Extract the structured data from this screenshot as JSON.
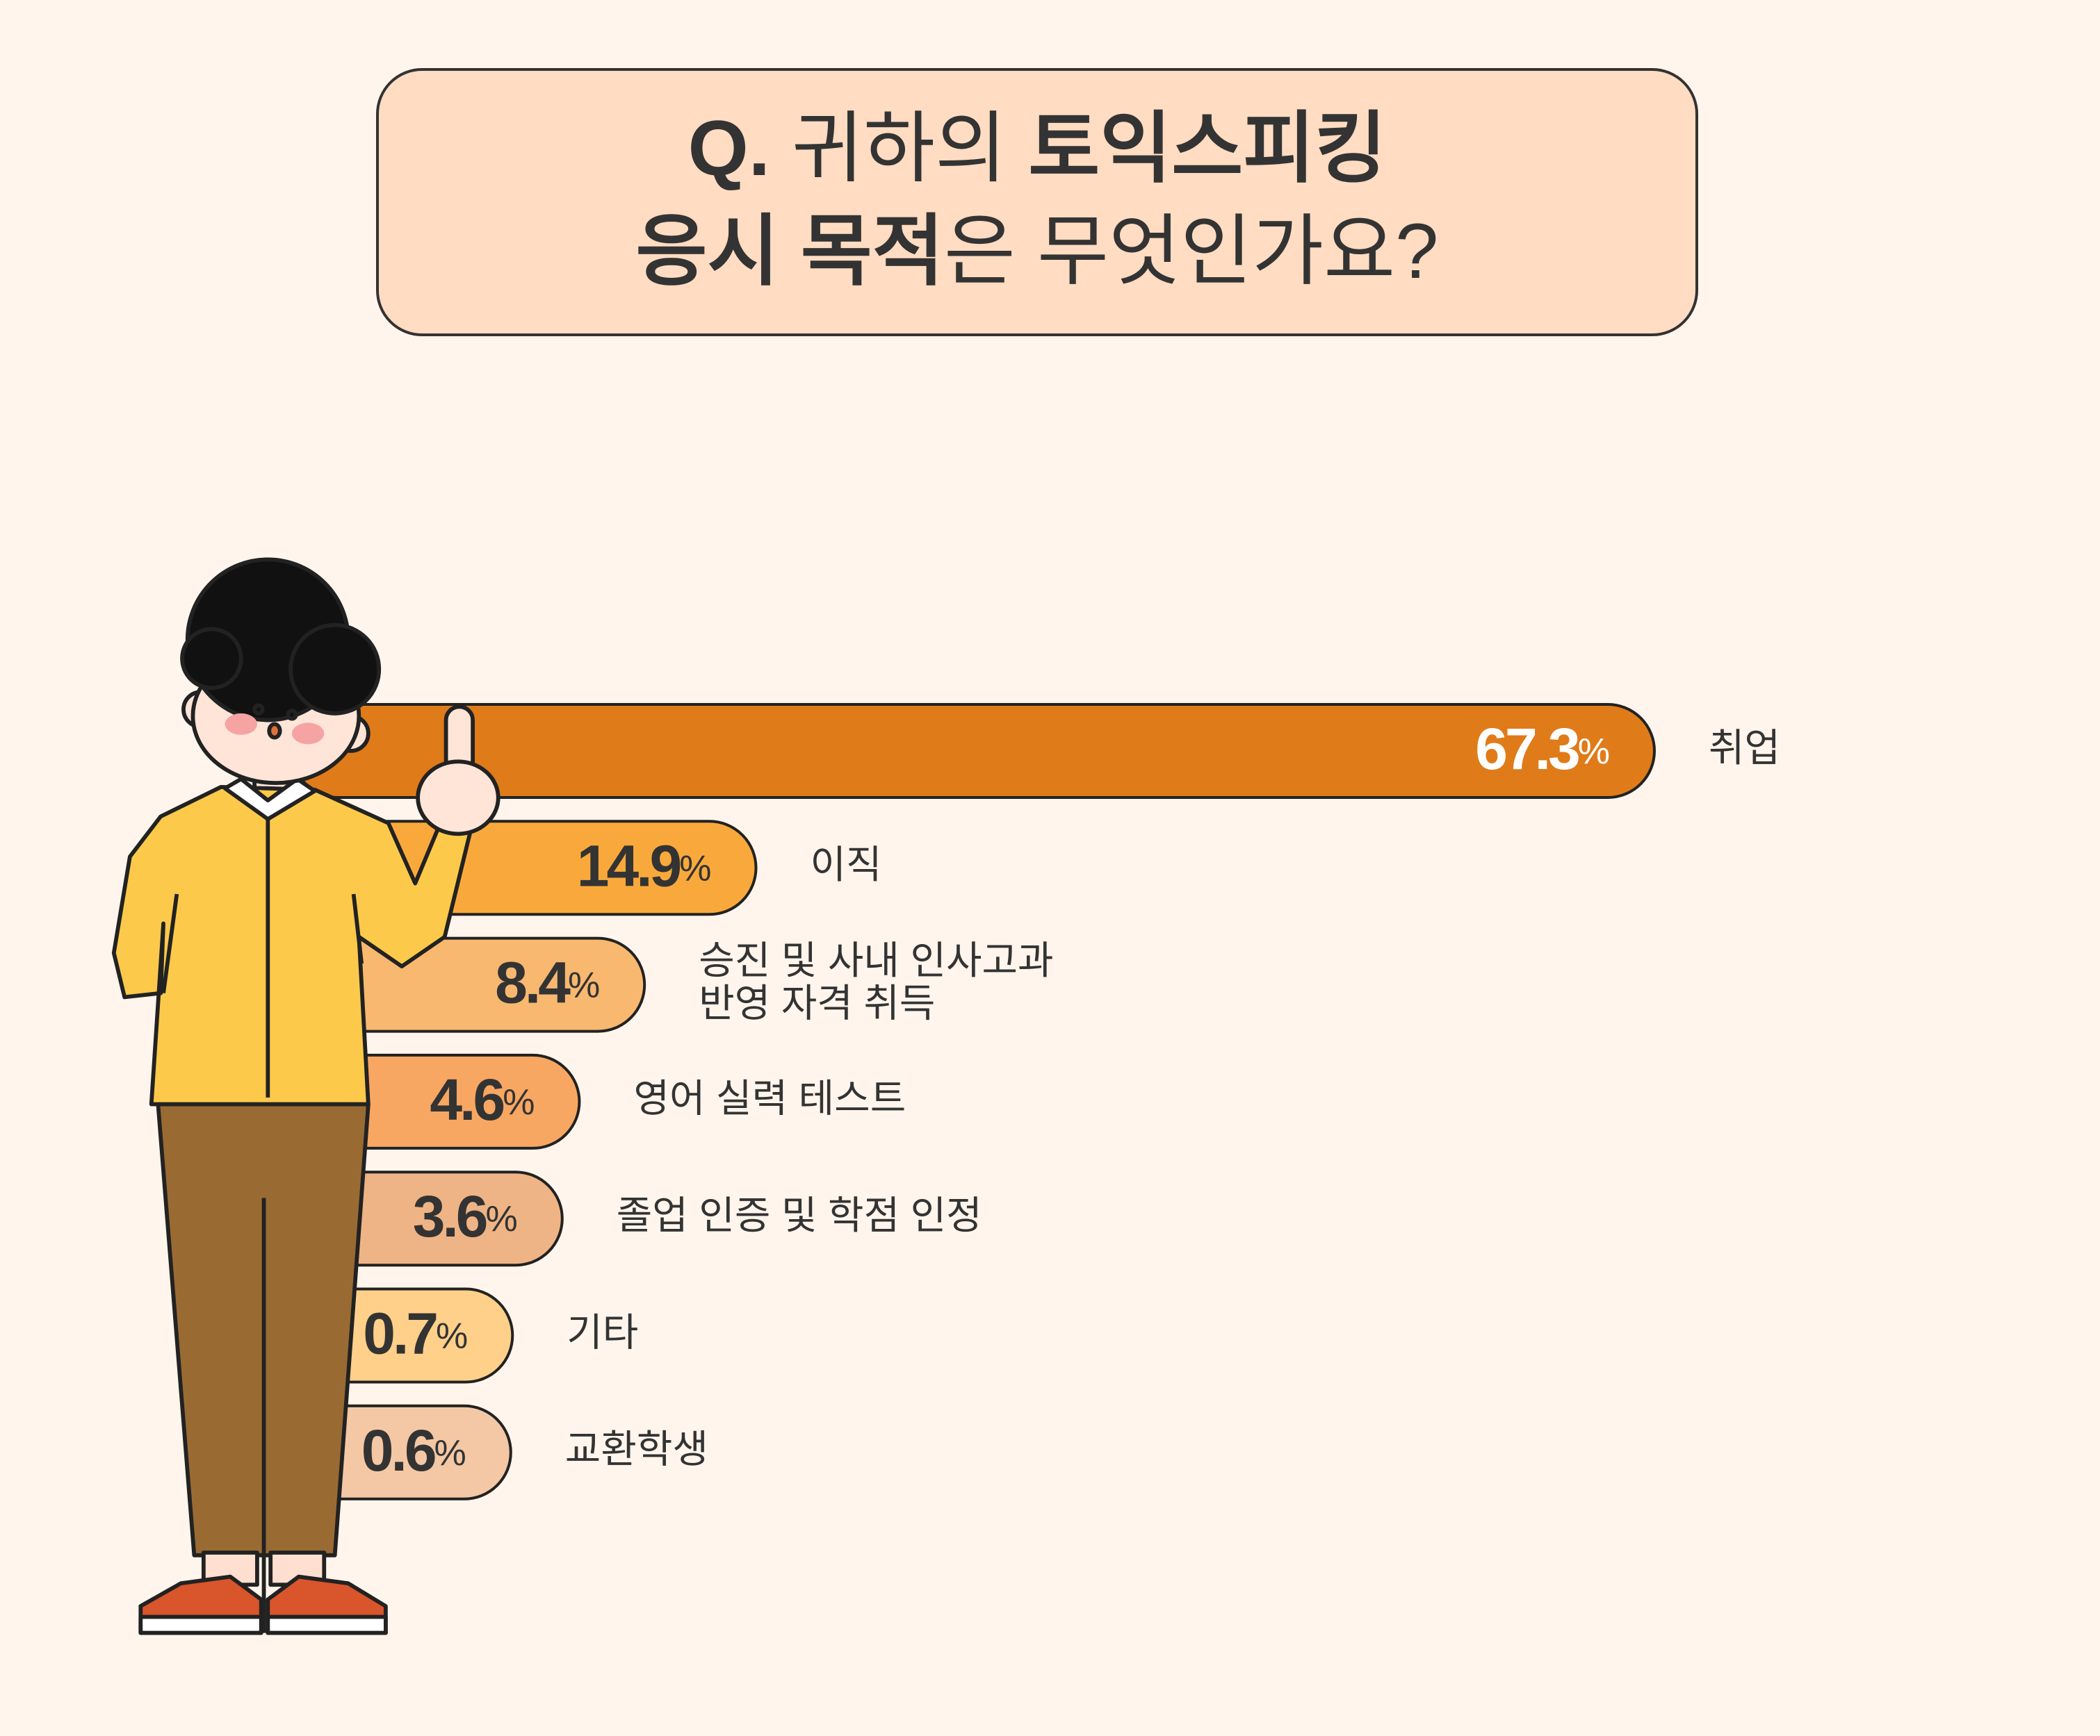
{
  "chart_data": {
    "type": "bar",
    "orientation": "horizontal",
    "title": [
      [
        {
          "text": "Q.",
          "bold": true
        },
        {
          "text": " 귀하의 ",
          "bold": false
        },
        {
          "text": "토익스피킹",
          "bold": true
        }
      ],
      [
        {
          "text": "응시 목적",
          "bold": true
        },
        {
          "text": "은 무엇인가요?",
          "bold": false
        }
      ]
    ],
    "categories": [
      "취업",
      "이직",
      "승진 및 사내 인사고과\n반영 자격 취득",
      "영어 실력 테스트",
      "졸업 인증 및 학점 인정",
      "기타",
      "교환학생"
    ],
    "values": [
      67.3,
      14.9,
      8.4,
      4.6,
      3.6,
      0.7,
      0.6
    ],
    "value_labels": [
      "67.3%",
      "14.9%",
      "8.4%",
      "4.6%",
      "3.6%",
      "0.7%",
      "0.6%"
    ],
    "colors": [
      "#e07b1a",
      "#f9a93b",
      "#f8b870",
      "#f7a762",
      "#efb485",
      "#ffd08a",
      "#f4c8a5"
    ],
    "value_label_colors": [
      "#ffffff",
      "#333333",
      "#333333",
      "#333333",
      "#333333",
      "#333333",
      "#333333"
    ]
  }
}
